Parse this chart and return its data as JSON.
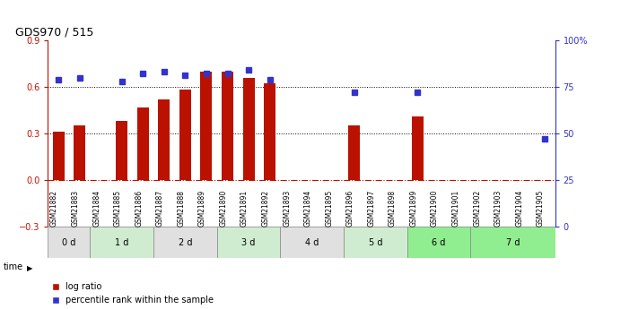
{
  "title": "GDS970 / 515",
  "samples": [
    "GSM21882",
    "GSM21883",
    "GSM21884",
    "GSM21885",
    "GSM21886",
    "GSM21887",
    "GSM21888",
    "GSM21889",
    "GSM21890",
    "GSM21891",
    "GSM21892",
    "GSM21893",
    "GSM21894",
    "GSM21895",
    "GSM21896",
    "GSM21897",
    "GSM21898",
    "GSM21899",
    "GSM21900",
    "GSM21901",
    "GSM21902",
    "GSM21903",
    "GSM21904",
    "GSM21905"
  ],
  "log_ratio": [
    0.31,
    0.35,
    0.0,
    0.38,
    0.47,
    0.52,
    0.58,
    0.7,
    0.7,
    0.66,
    0.62,
    0.0,
    0.0,
    0.0,
    0.35,
    0.0,
    0.0,
    0.41,
    0.0,
    0.0,
    0.0,
    0.0,
    0.0,
    0.0
  ],
  "percentile_rank": [
    79,
    80,
    0,
    78,
    82,
    83,
    81,
    82,
    82,
    84,
    79,
    0,
    0,
    0,
    72,
    0,
    0,
    72,
    0,
    0,
    0,
    0,
    0,
    47
  ],
  "percentile_rank_show": [
    true,
    true,
    false,
    true,
    true,
    true,
    true,
    true,
    true,
    true,
    true,
    false,
    false,
    false,
    true,
    false,
    false,
    true,
    false,
    false,
    false,
    false,
    false,
    true
  ],
  "time_groups": [
    {
      "label": "0 d",
      "start": 0,
      "end": 2,
      "color": "#e0e0e0"
    },
    {
      "label": "1 d",
      "start": 2,
      "end": 5,
      "color": "#d0ecd0"
    },
    {
      "label": "2 d",
      "start": 5,
      "end": 8,
      "color": "#e0e0e0"
    },
    {
      "label": "3 d",
      "start": 8,
      "end": 11,
      "color": "#d0ecd0"
    },
    {
      "label": "4 d",
      "start": 11,
      "end": 14,
      "color": "#e0e0e0"
    },
    {
      "label": "5 d",
      "start": 14,
      "end": 17,
      "color": "#d0ecd0"
    },
    {
      "label": "6 d",
      "start": 17,
      "end": 20,
      "color": "#90ee90"
    },
    {
      "label": "7 d",
      "start": 20,
      "end": 24,
      "color": "#90ee90"
    }
  ],
  "bar_color": "#bb1100",
  "dot_color": "#3333cc",
  "ylim_left": [
    -0.3,
    0.9
  ],
  "ylim_right": [
    0,
    100
  ],
  "yticks_left": [
    -0.3,
    0.0,
    0.3,
    0.6,
    0.9
  ],
  "yticks_right": [
    0,
    25,
    50,
    75,
    100
  ],
  "hline_dotted": [
    0.3,
    0.6
  ],
  "hline_dash": 0.0,
  "right_tick_labels": [
    "0",
    "25",
    "50",
    "75",
    "100%"
  ],
  "background_color": "#ffffff",
  "legend_entries": [
    "log ratio",
    "percentile rank within the sample"
  ]
}
